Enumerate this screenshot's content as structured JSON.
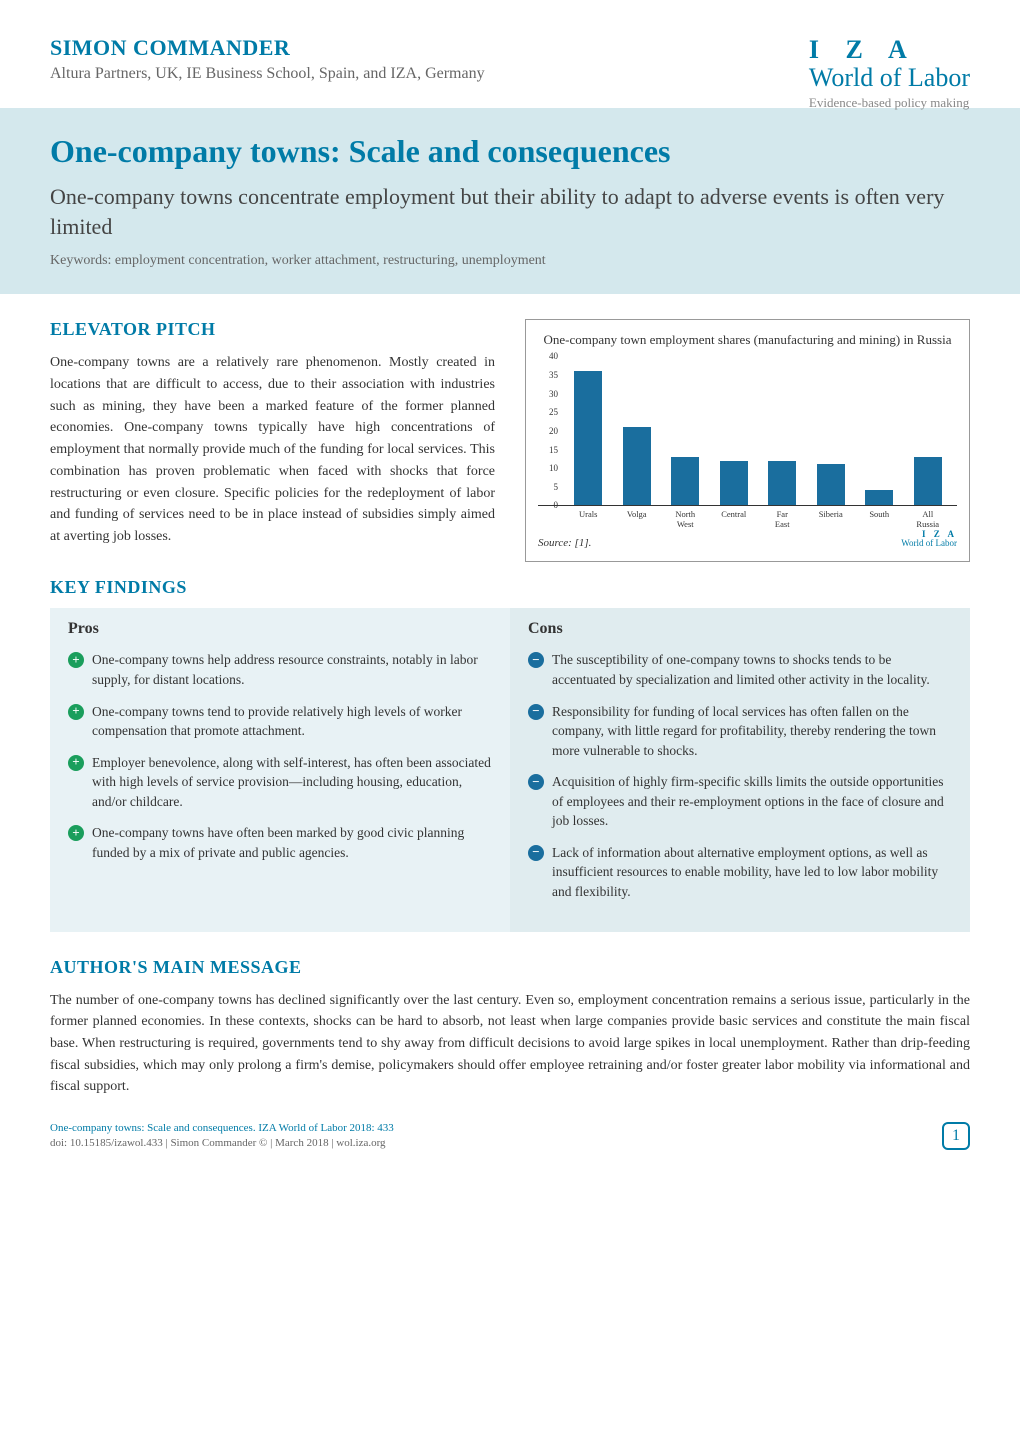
{
  "author": {
    "name": "SIMON COMMANDER",
    "affiliation": "Altura Partners, UK, IE Business School, Spain, and IZA, Germany"
  },
  "brand": {
    "letters": "I Z A",
    "title": "World of Labor",
    "tagline": "Evidence-based policy making"
  },
  "article": {
    "title": "One-company towns: Scale and consequences",
    "subtitle": "One-company towns concentrate employment but their ability to adapt to adverse events is often very limited",
    "keywords": "Keywords:  employment concentration, worker attachment, restructuring, unemployment"
  },
  "elevator": {
    "heading": "ELEVATOR PITCH",
    "text": "One-company towns are a relatively rare phenomenon. Mostly created in locations that are difficult to access, due to their association with industries such as mining, they have been a marked feature of the former planned economies. One-company towns typically have high concentrations of employment that normally provide much of the funding for local services. This combination has proven problematic when faced with shocks that force restructuring or even closure. Specific policies for the redeployment of labor and funding of services need to be in place instead of subsidies simply aimed at averting job losses."
  },
  "chart": {
    "title": "One-company town employment shares (manufacturing and mining) in Russia",
    "type": "bar",
    "categories": [
      "Urals",
      "Volga",
      "North West",
      "Central",
      "Far East",
      "Siberia",
      "South",
      "All Russia"
    ],
    "values": [
      36,
      21,
      13,
      12,
      12,
      11,
      4,
      13
    ],
    "bar_color": "#1a6e9e",
    "ylim": [
      0,
      40
    ],
    "ytick_step": 5,
    "yticks": [
      0,
      5,
      10,
      15,
      20,
      25,
      30,
      35,
      40
    ],
    "background_color": "#ffffff",
    "source": "Source: [1].",
    "footer_brand": "I Z A",
    "footer_brand2": "World of Labor"
  },
  "key_findings": {
    "heading": "KEY FINDINGS",
    "pros_heading": "Pros",
    "cons_heading": "Cons",
    "pros": [
      "One-company towns help address resource constraints, notably in labor supply, for distant locations.",
      "One-company towns tend to provide relatively high levels of worker compensation that promote attachment.",
      "Employer benevolence, along with self-interest, has often been associated with high levels of service provision—including housing, education, and/or childcare.",
      "One-company towns have often been marked by good civic planning funded by a mix of private and public agencies."
    ],
    "cons": [
      "The susceptibility of one-company towns to shocks tends to be accentuated by specialization and limited other activity in the locality.",
      "Responsibility for funding of local services has often fallen on the company, with little regard for profitability, thereby rendering the town more vulnerable to shocks.",
      "Acquisition of highly firm-specific skills limits the outside opportunities of employees and their re-employment options in the face of closure and job losses.",
      "Lack of information about alternative employment options, as well as insufficient resources to enable mobility, have led to low labor mobility and flexibility."
    ]
  },
  "main_message": {
    "heading": "AUTHOR'S MAIN MESSAGE",
    "text": "The number of one-company towns has declined significantly over the last century. Even so, employment concentration remains a serious issue, particularly in the former planned economies. In these contexts, shocks can be hard to absorb, not least when large companies provide basic services and constitute the main fiscal base. When restructuring is required, governments tend to shy away from difficult decisions to avoid large spikes in local unemployment. Rather than drip-feeding fiscal subsidies, which may only prolong a firm's demise, policymakers should offer employee retraining and/or foster greater labor mobility via informational and fiscal support."
  },
  "footer": {
    "citation": "One-company towns: Scale and consequences. IZA World of Labor 2018: 433",
    "doi": "doi: 10.15185/izawol.433 | Simon Commander © | March 2018 | wol.iza.org",
    "page": "1"
  }
}
